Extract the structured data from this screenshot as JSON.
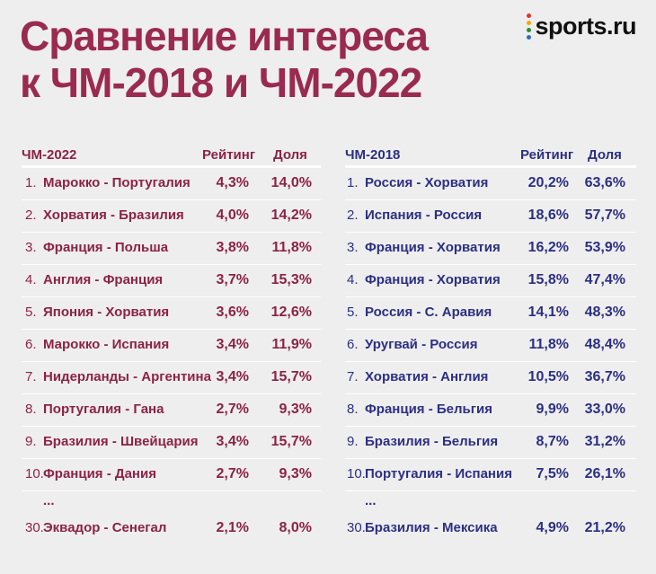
{
  "title_line1": "Сравнение интереса",
  "title_line2": "к ЧМ-2018 и ЧМ-2022",
  "logo": {
    "text": "sports.ru",
    "dot_colors": [
      "#e6332a",
      "#f7a600",
      "#2e8b3e",
      "#2b6cc4"
    ]
  },
  "colors": {
    "title": "#9a2a4f",
    "left": "#8c2246",
    "right": "#2c2f82",
    "background": "#eeeeee"
  },
  "chart_data": [
    {
      "type": "table",
      "title": "ЧМ-2022",
      "columns": [
        "ЧМ-2022",
        "Рейтинг",
        "Доля"
      ],
      "rows": [
        {
          "rank": "1.",
          "match": "Марокко - Португалия",
          "rating": "4,3%",
          "share": "14,0%"
        },
        {
          "rank": "2.",
          "match": "Хорватия - Бразилия",
          "rating": "4,0%",
          "share": "14,2%"
        },
        {
          "rank": "3.",
          "match": "Франция - Польша",
          "rating": "3,8%",
          "share": "11,8%"
        },
        {
          "rank": "4.",
          "match": "Англия - Франция",
          "rating": "3,7%",
          "share": "15,3%"
        },
        {
          "rank": "5.",
          "match": "Япония - Хорватия",
          "rating": "3,6%",
          "share": "12,6%"
        },
        {
          "rank": "6.",
          "match": "Марокко - Испания",
          "rating": "3,4%",
          "share": "11,9%"
        },
        {
          "rank": "7.",
          "match": "Нидерланды - Аргентина",
          "rating": "3,4%",
          "share": "15,7%"
        },
        {
          "rank": "8.",
          "match": "Португалия - Гана",
          "rating": "2,7%",
          "share": "9,3%"
        },
        {
          "rank": "9.",
          "match": "Бразилия - Швейцария",
          "rating": "3,4%",
          "share": "15,7%"
        },
        {
          "rank": "10.",
          "match": "Франция - Дания",
          "rating": "2,7%",
          "share": "9,3%"
        }
      ],
      "ellipsis": "...",
      "last_row": {
        "rank": "30.",
        "match": "Эквадор - Сенегал",
        "rating": "2,1%",
        "share": "8,0%"
      }
    },
    {
      "type": "table",
      "title": "ЧМ-2018",
      "columns": [
        "ЧМ-2018",
        "Рейтинг",
        "Доля"
      ],
      "rows": [
        {
          "rank": "1.",
          "match": "Россия - Хорватия",
          "rating": "20,2%",
          "share": "63,6%"
        },
        {
          "rank": "2.",
          "match": "Испания - Россия",
          "rating": "18,6%",
          "share": "57,7%"
        },
        {
          "rank": "3.",
          "match": "Франция - Хорватия",
          "rating": "16,2%",
          "share": "53,9%"
        },
        {
          "rank": "4.",
          "match": "Франция - Хорватия",
          "rating": "15,8%",
          "share": "47,4%"
        },
        {
          "rank": "5.",
          "match": "Россия - С. Аравия",
          "rating": "14,1%",
          "share": "48,3%"
        },
        {
          "rank": "6.",
          "match": "Уругвай - Россия",
          "rating": "11,8%",
          "share": "48,4%"
        },
        {
          "rank": "7.",
          "match": "Хорватия - Англия",
          "rating": "10,5%",
          "share": "36,7%"
        },
        {
          "rank": "8.",
          "match": "Франция - Бельгия",
          "rating": "9,9%",
          "share": "33,0%"
        },
        {
          "rank": "9.",
          "match": "Бразилия - Бельгия",
          "rating": "8,7%",
          "share": "31,2%"
        },
        {
          "rank": "10.",
          "match": "Португалия - Испания",
          "rating": "7,5%",
          "share": "26,1%"
        }
      ],
      "ellipsis": "...",
      "last_row": {
        "rank": "30.",
        "match": "Бразилия - Мексика",
        "rating": "4,9%",
        "share": "21,2%"
      }
    }
  ]
}
